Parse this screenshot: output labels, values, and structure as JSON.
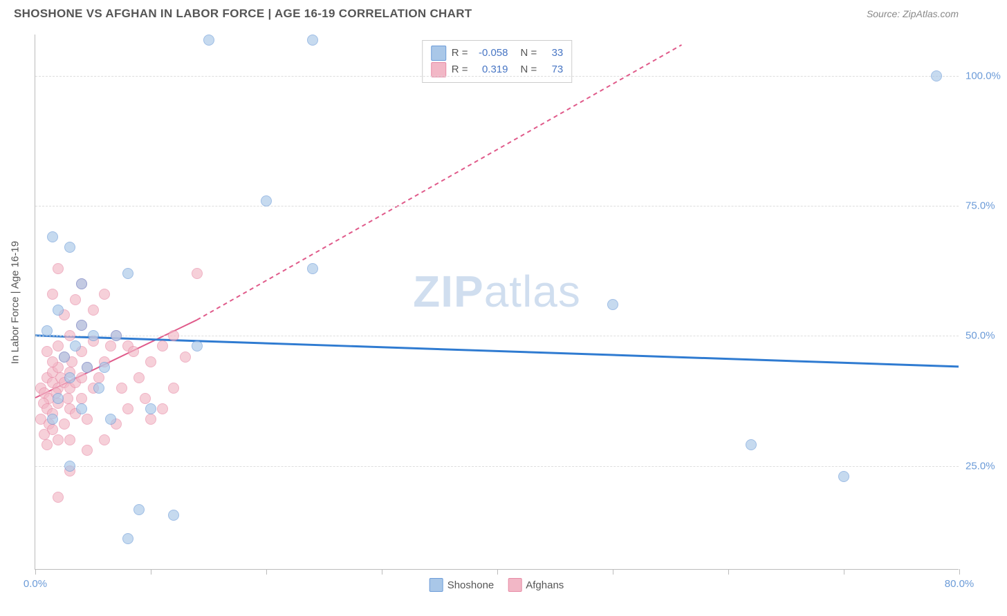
{
  "header": {
    "title": "SHOSHONE VS AFGHAN IN LABOR FORCE | AGE 16-19 CORRELATION CHART",
    "source": "Source: ZipAtlas.com"
  },
  "watermark": {
    "zip": "ZIP",
    "atlas": "atlas"
  },
  "chart": {
    "type": "scatter",
    "ylabel": "In Labor Force | Age 16-19",
    "xlim": [
      0,
      80
    ],
    "ylim": [
      5,
      108
    ],
    "xticks": [
      0,
      10,
      20,
      30,
      40,
      50,
      60,
      70,
      80
    ],
    "xtick_labels": {
      "0": "0.0%",
      "80": "80.0%"
    },
    "yticks": [
      25,
      50,
      75,
      100
    ],
    "ytick_labels": [
      "25.0%",
      "50.0%",
      "75.0%",
      "100.0%"
    ],
    "grid_color": "#dddddd",
    "axis_color": "#bbbbbb",
    "background_color": "#ffffff",
    "point_radius": 8,
    "point_opacity": 0.65,
    "series": {
      "shoshone": {
        "label": "Shoshone",
        "fill": "#a9c7e8",
        "stroke": "#6b9bd8",
        "R": "-0.058",
        "N": "33",
        "trend": {
          "color": "#2f7bd1",
          "width": 3,
          "solid_from": [
            0,
            50
          ],
          "solid_to": [
            80,
            44
          ],
          "dash_from": [
            80,
            44
          ],
          "dash_to": [
            80,
            44
          ]
        },
        "points": [
          [
            1.5,
            69
          ],
          [
            3,
            67
          ],
          [
            2,
            55
          ],
          [
            4,
            52
          ],
          [
            1,
            51
          ],
          [
            5,
            50
          ],
          [
            7,
            50
          ],
          [
            3.5,
            48
          ],
          [
            2.5,
            46
          ],
          [
            4.5,
            44
          ],
          [
            6,
            44
          ],
          [
            3,
            42
          ],
          [
            5.5,
            40
          ],
          [
            2,
            38
          ],
          [
            4,
            36
          ],
          [
            1.5,
            34
          ],
          [
            6.5,
            34
          ],
          [
            3,
            25
          ],
          [
            9,
            16.5
          ],
          [
            12,
            15.5
          ],
          [
            8,
            62
          ],
          [
            4,
            60
          ],
          [
            14,
            48
          ],
          [
            10,
            36
          ],
          [
            8,
            11
          ],
          [
            20,
            76
          ],
          [
            24,
            107
          ],
          [
            15,
            107
          ],
          [
            24,
            63
          ],
          [
            50,
            56
          ],
          [
            62,
            29
          ],
          [
            70,
            23
          ],
          [
            78,
            100
          ]
        ]
      },
      "afghans": {
        "label": "Afghans",
        "fill": "#f2b7c6",
        "stroke": "#e78aa5",
        "R": "0.319",
        "N": "73",
        "trend": {
          "color": "#e05a8a",
          "width": 2,
          "solid_from": [
            0,
            38
          ],
          "solid_to": [
            14,
            53
          ],
          "dash_from": [
            14,
            53
          ],
          "dash_to": [
            56,
            106
          ]
        },
        "points": [
          [
            0.5,
            40
          ],
          [
            1,
            42
          ],
          [
            1.5,
            41
          ],
          [
            0.8,
            39
          ],
          [
            1.2,
            38
          ],
          [
            2,
            40
          ],
          [
            1.5,
            43
          ],
          [
            2.2,
            42
          ],
          [
            0.7,
            37
          ],
          [
            1.8,
            39
          ],
          [
            2.5,
            41
          ],
          [
            1,
            36
          ],
          [
            2,
            37
          ],
          [
            3,
            40
          ],
          [
            1.5,
            35
          ],
          [
            2.8,
            38
          ],
          [
            0.5,
            34
          ],
          [
            3.5,
            41
          ],
          [
            1.2,
            33
          ],
          [
            2,
            44
          ],
          [
            3,
            43
          ],
          [
            4,
            42
          ],
          [
            1.5,
            45
          ],
          [
            2.5,
            46
          ],
          [
            3.2,
            45
          ],
          [
            4.5,
            44
          ],
          [
            1,
            47
          ],
          [
            2,
            48
          ],
          [
            5,
            40
          ],
          [
            3,
            36
          ],
          [
            4,
            38
          ],
          [
            1.5,
            32
          ],
          [
            2.5,
            33
          ],
          [
            0.8,
            31
          ],
          [
            3.5,
            35
          ],
          [
            5.5,
            42
          ],
          [
            4,
            47
          ],
          [
            6,
            45
          ],
          [
            2,
            30
          ],
          [
            3,
            30
          ],
          [
            1,
            29
          ],
          [
            4.5,
            34
          ],
          [
            5,
            49
          ],
          [
            6.5,
            48
          ],
          [
            3,
            50
          ],
          [
            7,
            50
          ],
          [
            4,
            52
          ],
          [
            2.5,
            54
          ],
          [
            5,
            55
          ],
          [
            3.5,
            57
          ],
          [
            1.5,
            58
          ],
          [
            4,
            60
          ],
          [
            2,
            63
          ],
          [
            6,
            58
          ],
          [
            8,
            48
          ],
          [
            7.5,
            40
          ],
          [
            9,
            42
          ],
          [
            8,
            36
          ],
          [
            3,
            24
          ],
          [
            2,
            19
          ],
          [
            10,
            45
          ],
          [
            11,
            48
          ],
          [
            9.5,
            38
          ],
          [
            12,
            50
          ],
          [
            14,
            62
          ],
          [
            13,
            46
          ],
          [
            10,
            34
          ],
          [
            12,
            40
          ],
          [
            8.5,
            47
          ],
          [
            11,
            36
          ],
          [
            6,
            30
          ],
          [
            4.5,
            28
          ],
          [
            7,
            33
          ]
        ]
      }
    },
    "legend_top": {
      "rows": [
        {
          "swatch_fill": "#a9c7e8",
          "swatch_stroke": "#6b9bd8",
          "R": "-0.058",
          "N": "33"
        },
        {
          "swatch_fill": "#f2b7c6",
          "swatch_stroke": "#e78aa5",
          "R": "0.319",
          "N": "73"
        }
      ]
    },
    "legend_bottom": [
      {
        "swatch_fill": "#a9c7e8",
        "swatch_stroke": "#6b9bd8",
        "label": "Shoshone"
      },
      {
        "swatch_fill": "#f2b7c6",
        "swatch_stroke": "#e78aa5",
        "label": "Afghans"
      }
    ]
  }
}
